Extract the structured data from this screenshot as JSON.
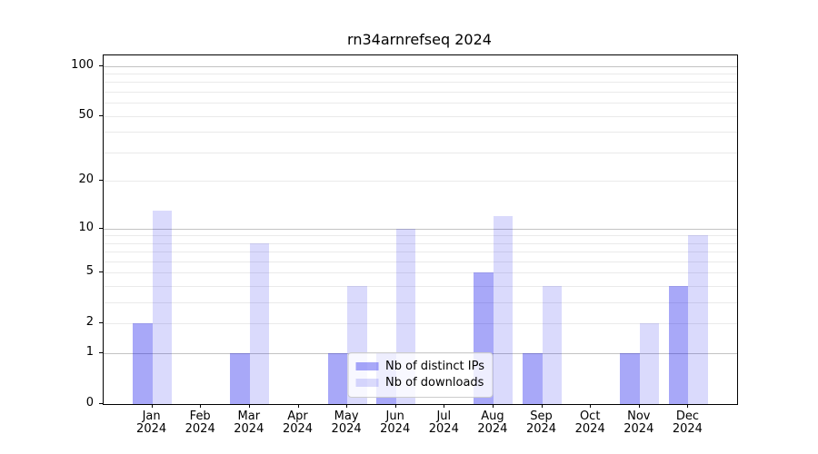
{
  "title": "rn34arnrefseq 2024",
  "chart_data": {
    "type": "bar",
    "title": "rn34arnrefseq 2024",
    "categories": [
      "Jan 2024",
      "Feb 2024",
      "Mar 2024",
      "Apr 2024",
      "May 2024",
      "Jun 2024",
      "Jul 2024",
      "Aug 2024",
      "Sep 2024",
      "Oct 2024",
      "Nov 2024",
      "Dec 2024"
    ],
    "series": [
      {
        "name": "Nb of distinct IPs",
        "color": "rgba(0,0,234,0.34)",
        "values": [
          2,
          0,
          1,
          0,
          1,
          1,
          0,
          5,
          1,
          0,
          1,
          4
        ]
      },
      {
        "name": "Nb of downloads",
        "color": "rgba(0,0,234,0.145)",
        "values": [
          13,
          0,
          8,
          0,
          4,
          10,
          0,
          12,
          4,
          0,
          2,
          9
        ]
      }
    ],
    "xlabel": "",
    "ylabel": "",
    "y_scale": "log1p",
    "y_ticks": [
      0,
      1,
      2,
      5,
      10,
      20,
      50,
      100
    ],
    "ylim": [
      0,
      115
    ],
    "grid": {
      "orientation": "horizontal",
      "major": [
        1,
        10,
        100
      ],
      "minor": [
        2,
        3,
        4,
        5,
        6,
        7,
        8,
        9,
        20,
        30,
        40,
        50,
        60,
        70,
        80,
        90
      ]
    },
    "legend_position": "lower center inside"
  }
}
